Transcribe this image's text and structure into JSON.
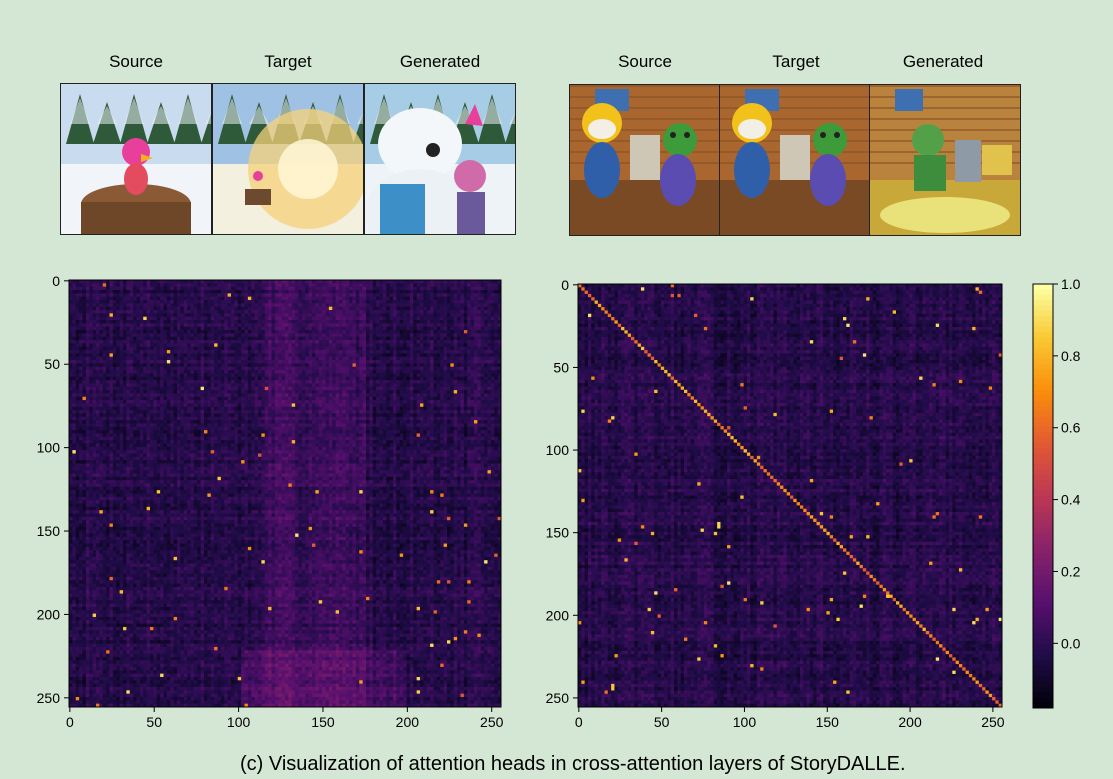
{
  "caption": "(c) Visualization of attention heads in cross-attention layers of StoryDALLE.",
  "examples": [
    {
      "titles": [
        "Source",
        "Target",
        "Generated"
      ],
      "images": [
        {
          "name": "snow-bird-on-stump",
          "colors": {
            "sky": "#c9dcef",
            "ground": "#f1f4f8",
            "subject": "#e8409a",
            "accent": "#8a5a36"
          }
        },
        {
          "name": "snow-burst-scene",
          "colors": {
            "sky": "#9fc1e3",
            "ground": "#f4f0e0",
            "subject": "#f5d27a",
            "accent": "#6b4a2f"
          }
        },
        {
          "name": "polar-bear-and-bird",
          "colors": {
            "sky": "#a7cde6",
            "ground": "#eef3f7",
            "subject": "#ffffff",
            "accent": "#3d8fc8"
          }
        }
      ]
    },
    {
      "titles": [
        "Source",
        "Target",
        "Generated"
      ],
      "images": [
        {
          "name": "penguin-and-dino-room",
          "colors": {
            "sky": "#a9662e",
            "ground": "#7a4a24",
            "subject": "#3d9b3a",
            "accent": "#f2c21a"
          }
        },
        {
          "name": "penguin-and-dino-room-2",
          "colors": {
            "sky": "#a9662e",
            "ground": "#7a4a24",
            "subject": "#3d9b3a",
            "accent": "#f2c21a"
          }
        },
        {
          "name": "dino-room-generated",
          "colors": {
            "sky": "#b9823d",
            "ground": "#c9a83a",
            "subject": "#52a148",
            "accent": "#e9e27a"
          }
        }
      ]
    }
  ],
  "chart_data": [
    {
      "type": "heatmap",
      "title": "",
      "xlabel": "",
      "ylabel": "",
      "size": 256,
      "xlim": [
        0,
        255
      ],
      "ylim": [
        0,
        255
      ],
      "x_ticks": [
        "0",
        "50",
        "100",
        "150",
        "200",
        "250"
      ],
      "y_ticks": [
        "0",
        "50",
        "100",
        "150",
        "200",
        "250"
      ],
      "pattern": "scattered",
      "colormap": "inferno"
    },
    {
      "type": "heatmap",
      "title": "",
      "xlabel": "",
      "ylabel": "",
      "size": 256,
      "xlim": [
        0,
        255
      ],
      "ylim": [
        0,
        255
      ],
      "x_ticks": [
        "0",
        "50",
        "100",
        "150",
        "200",
        "250"
      ],
      "y_ticks": [
        "0",
        "50",
        "100",
        "150",
        "200",
        "250"
      ],
      "pattern": "diagonal",
      "colormap": "inferno"
    }
  ],
  "colorbar": {
    "ticks": [
      "1.0",
      "0.8",
      "0.6",
      "0.4",
      "0.2",
      "0.0"
    ],
    "tick_values": [
      1.0,
      0.8,
      0.6,
      0.4,
      0.2,
      0.0
    ],
    "range": [
      -0.18,
      1.0
    ],
    "colormap": "inferno"
  }
}
